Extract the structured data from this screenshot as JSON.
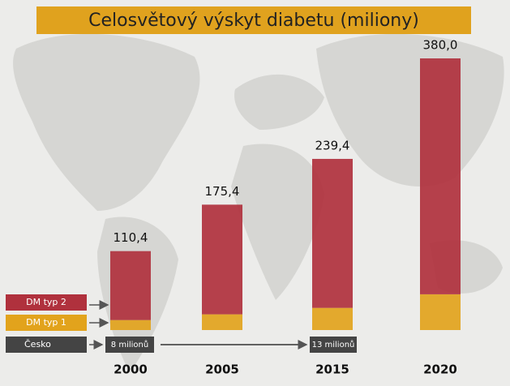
{
  "chart_data": {
    "type": "stacked-bar",
    "title": "Celosvětový výskyt diabetu (miliony)",
    "categories": [
      "2000",
      "2005",
      "2015",
      "2020"
    ],
    "series": [
      {
        "name": "DM typ 1",
        "color": "#e2a31c",
        "values": [
          14,
          22,
          31,
          50
        ]
      },
      {
        "name": "DM typ 2",
        "color": "#b0313d",
        "values": [
          96.4,
          153.4,
          208.4,
          330.0
        ]
      }
    ],
    "totals": [
      110.4,
      175.4,
      239.4,
      380.0
    ],
    "total_labels": [
      "110,4",
      "175,4",
      "239,4",
      "380,0"
    ],
    "czech_legend": "Česko",
    "czech_annotations": [
      "8 milionů",
      "13 milionů"
    ]
  }
}
